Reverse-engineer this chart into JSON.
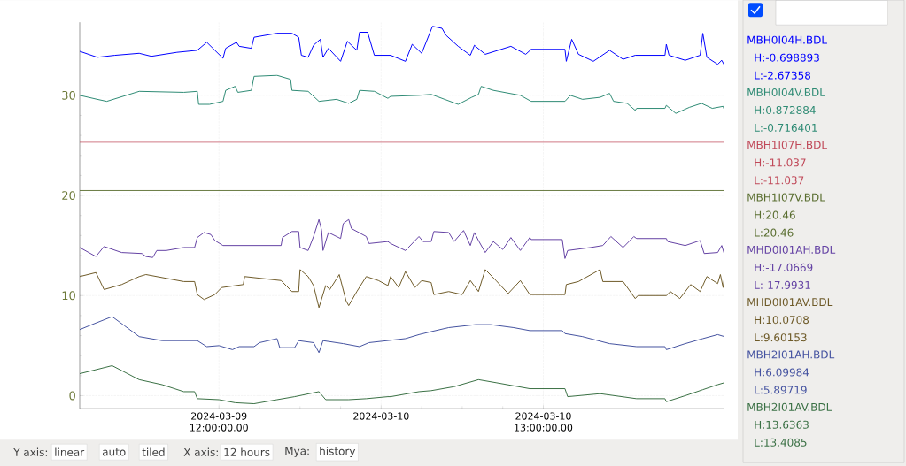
{
  "chart_data": {
    "type": "line",
    "xlim": [
      "2024-03-09T01:42",
      "2024-03-11T01:24"
    ],
    "ylim": [
      -1.3,
      37.3
    ],
    "xticks": [
      {
        "value": "2024-03-09T12:00",
        "label": "2024-03-09 12:00:00.00"
      },
      {
        "value": "2024-03-10T00:00",
        "label": "2024-03-10"
      },
      {
        "value": "2024-03-10T12:00",
        "label": "2024-03-10 13:00:00.00"
      }
    ],
    "yticks": [
      0,
      10,
      20,
      30
    ],
    "grid": true,
    "legend": "right",
    "series": [
      {
        "name": "MBH0I04H.BDL",
        "color": "#0000ff",
        "x": [
          "2024-03-09T01:42",
          "2024-03-09T03:00",
          "2024-03-09T04:18",
          "2024-03-09T06:06",
          "2024-03-09T07:00",
          "2024-03-09T08:54",
          "2024-03-09T10:24",
          "2024-03-09T11:06",
          "2024-03-09T11:42",
          "2024-03-09T12:18",
          "2024-03-09T12:30",
          "2024-03-09T13:18",
          "2024-03-09T13:30",
          "2024-03-09T14:24",
          "2024-03-09T14:36",
          "2024-03-09T16:18",
          "2024-03-09T17:24",
          "2024-03-09T17:54",
          "2024-03-09T18:06",
          "2024-03-09T18:36",
          "2024-03-09T19:00",
          "2024-03-09T19:30",
          "2024-03-09T19:42",
          "2024-03-09T20:06",
          "2024-03-09T21:00",
          "2024-03-09T21:30",
          "2024-03-09T22:12",
          "2024-03-09T22:24",
          "2024-03-09T23:00",
          "2024-03-09T23:30",
          "2024-03-10T00:30",
          "2024-03-10T00:42",
          "2024-03-10T01:48",
          "2024-03-10T02:18",
          "2024-03-10T03:00",
          "2024-03-10T03:48",
          "2024-03-10T04:30",
          "2024-03-10T04:48",
          "2024-03-10T05:42",
          "2024-03-10T06:36",
          "2024-03-10T06:54",
          "2024-03-10T07:42",
          "2024-03-10T09:36",
          "2024-03-10T10:42",
          "2024-03-10T11:06",
          "2024-03-10T13:36",
          "2024-03-10T13:42",
          "2024-03-10T14:06",
          "2024-03-10T14:36",
          "2024-03-10T15:42",
          "2024-03-10T16:54",
          "2024-03-10T17:54",
          "2024-03-10T18:48",
          "2024-03-10T21:00",
          "2024-03-10T21:06",
          "2024-03-10T21:18",
          "2024-03-10T22:30",
          "2024-03-10T23:36",
          "2024-03-10T23:48",
          "2024-03-11T00:06",
          "2024-03-11T00:54",
          "2024-03-11T01:12",
          "2024-03-11T01:24"
        ],
        "values": [
          34.4,
          33.8,
          34.0,
          34.2,
          33.9,
          34.3,
          34.5,
          35.3,
          34.5,
          33.7,
          34.7,
          35.3,
          34.9,
          34.7,
          35.8,
          36.2,
          36.2,
          35.8,
          34.0,
          33.8,
          35.0,
          35.6,
          33.8,
          34.7,
          33.4,
          35.4,
          34.5,
          36.3,
          36.3,
          34.0,
          34.0,
          34.0,
          33.4,
          35.1,
          34.2,
          36.9,
          36.7,
          36.0,
          34.9,
          34.0,
          35.0,
          34.1,
          34.9,
          34.1,
          34.6,
          34.6,
          33.4,
          35.6,
          34.1,
          33.4,
          34.5,
          33.6,
          34.0,
          34.0,
          35.1,
          34.0,
          33.5,
          34.0,
          36.2,
          33.8,
          33.1,
          33.5,
          33.0
        ]
      },
      {
        "name": "MBH0I04V.BDL",
        "color": "#2e8b74",
        "x": [
          "2024-03-09T01:42",
          "2024-03-09T03:00",
          "2024-03-09T03:42",
          "2024-03-09T06:06",
          "2024-03-09T09:24",
          "2024-03-09T10:24",
          "2024-03-09T10:30",
          "2024-03-09T11:18",
          "2024-03-09T12:18",
          "2024-03-09T12:30",
          "2024-03-09T13:12",
          "2024-03-09T13:24",
          "2024-03-09T14:24",
          "2024-03-09T14:36",
          "2024-03-09T16:18",
          "2024-03-09T17:18",
          "2024-03-09T17:24",
          "2024-03-09T18:36",
          "2024-03-09T19:24",
          "2024-03-09T20:42",
          "2024-03-09T21:36",
          "2024-03-09T22:12",
          "2024-03-09T22:24",
          "2024-03-09T23:30",
          "2024-03-10T00:30",
          "2024-03-10T00:42",
          "2024-03-10T02:48",
          "2024-03-10T03:42",
          "2024-03-10T05:42",
          "2024-03-10T06:42",
          "2024-03-10T07:12",
          "2024-03-10T07:24",
          "2024-03-10T08:18",
          "2024-03-10T10:18",
          "2024-03-10T11:06",
          "2024-03-10T13:36",
          "2024-03-10T14:00",
          "2024-03-10T14:54",
          "2024-03-10T16:12",
          "2024-03-10T16:54",
          "2024-03-10T17:12",
          "2024-03-10T18:12",
          "2024-03-10T18:48",
          "2024-03-10T18:54",
          "2024-03-10T21:00",
          "2024-03-10T21:06",
          "2024-03-10T21:48",
          "2024-03-10T22:48",
          "2024-03-10T23:42",
          "2024-03-11T00:30",
          "2024-03-11T01:18",
          "2024-03-11T01:24"
        ],
        "values": [
          30.0,
          29.6,
          29.4,
          30.4,
          30.3,
          30.4,
          29.1,
          29.1,
          29.4,
          30.5,
          30.9,
          30.3,
          30.5,
          31.9,
          32.0,
          31.6,
          30.5,
          30.4,
          29.4,
          29.6,
          29.2,
          29.6,
          30.5,
          30.4,
          29.7,
          29.9,
          30.0,
          30.1,
          29.1,
          29.8,
          30.1,
          30.9,
          30.5,
          30.0,
          29.4,
          29.4,
          30.0,
          29.6,
          29.8,
          30.2,
          29.4,
          29.2,
          28.5,
          28.7,
          28.7,
          29.0,
          28.2,
          28.8,
          29.2,
          28.7,
          28.9,
          28.5
        ]
      },
      {
        "name": "MBH1I07H.BDL",
        "color": "#c04858",
        "x": [
          "2024-03-09T01:42",
          "2024-03-11T01:24"
        ],
        "values": [
          25.3,
          25.3
        ]
      },
      {
        "name": "MBH1I07V.BDL",
        "color": "#5a6e30",
        "x": [
          "2024-03-09T01:42",
          "2024-03-11T01:24"
        ],
        "values": [
          20.5,
          20.5
        ]
      },
      {
        "name": "MHD0I01AH.BDL",
        "color": "#6442a4",
        "x": [
          "2024-03-09T01:42",
          "2024-03-09T02:54",
          "2024-03-09T03:30",
          "2024-03-09T04:48",
          "2024-03-09T06:18",
          "2024-03-09T06:36",
          "2024-03-09T07:06",
          "2024-03-09T07:24",
          "2024-03-09T08:06",
          "2024-03-09T09:24",
          "2024-03-09T10:12",
          "2024-03-09T10:24",
          "2024-03-09T10:54",
          "2024-03-09T11:24",
          "2024-03-09T11:42",
          "2024-03-09T12:18",
          "2024-03-09T16:36",
          "2024-03-09T16:42",
          "2024-03-09T17:24",
          "2024-03-09T17:54",
          "2024-03-09T18:00",
          "2024-03-09T18:36",
          "2024-03-09T19:00",
          "2024-03-09T19:24",
          "2024-03-09T19:36",
          "2024-03-09T19:42",
          "2024-03-09T20:06",
          "2024-03-09T21:00",
          "2024-03-09T21:12",
          "2024-03-09T21:36",
          "2024-03-09T21:48",
          "2024-03-09T22:54",
          "2024-03-09T23:06",
          "2024-03-10T00:30",
          "2024-03-10T00:42",
          "2024-03-10T01:48",
          "2024-03-10T02:48",
          "2024-03-10T03:06",
          "2024-03-10T03:42",
          "2024-03-10T03:54",
          "2024-03-10T05:00",
          "2024-03-10T05:24",
          "2024-03-10T06:06",
          "2024-03-10T06:36",
          "2024-03-10T06:54",
          "2024-03-10T07:12",
          "2024-03-10T07:42",
          "2024-03-10T08:18",
          "2024-03-10T09:00",
          "2024-03-10T09:36",
          "2024-03-10T10:18",
          "2024-03-10T11:00",
          "2024-03-10T11:06",
          "2024-03-10T13:24",
          "2024-03-10T13:36",
          "2024-03-10T13:48",
          "2024-03-10T15:30",
          "2024-03-10T16:24",
          "2024-03-10T17:00",
          "2024-03-10T17:54",
          "2024-03-10T18:42",
          "2024-03-10T18:54",
          "2024-03-10T21:06",
          "2024-03-10T21:12",
          "2024-03-10T22:30",
          "2024-03-10T23:36",
          "2024-03-10T23:54",
          "2024-03-11T00:54",
          "2024-03-11T01:12",
          "2024-03-11T01:24"
        ],
        "values": [
          14.8,
          13.9,
          14.9,
          14.3,
          14.2,
          13.9,
          13.8,
          14.5,
          14.5,
          14.8,
          14.8,
          15.8,
          16.3,
          16.1,
          15.5,
          15.0,
          15.0,
          15.8,
          16.4,
          16.4,
          14.8,
          14.5,
          15.9,
          17.6,
          16.5,
          14.5,
          16.3,
          15.7,
          17.2,
          17.6,
          16.7,
          15.9,
          15.2,
          15.4,
          15.2,
          14.5,
          15.9,
          15.4,
          15.4,
          16.4,
          16.3,
          15.4,
          16.5,
          15.0,
          16.3,
          15.5,
          14.3,
          15.4,
          14.6,
          15.8,
          14.5,
          15.8,
          15.6,
          15.6,
          13.7,
          14.5,
          14.8,
          15.0,
          15.9,
          14.8,
          15.9,
          15.7,
          15.7,
          15.4,
          15.0,
          15.5,
          14.2,
          14.3,
          15.0,
          14.1
        ]
      },
      {
        "name": "MHD0I01AV.BDL",
        "color": "#6e5a28",
        "x": [
          "2024-03-09T01:42",
          "2024-03-09T02:54",
          "2024-03-09T03:30",
          "2024-03-09T04:48",
          "2024-03-09T06:06",
          "2024-03-09T06:36",
          "2024-03-09T07:24",
          "2024-03-09T09:24",
          "2024-03-09T10:12",
          "2024-03-09T10:24",
          "2024-03-09T10:54",
          "2024-03-09T11:42",
          "2024-03-09T12:12",
          "2024-03-09T13:48",
          "2024-03-09T13:54",
          "2024-03-09T16:36",
          "2024-03-09T17:24",
          "2024-03-09T17:54",
          "2024-03-09T18:00",
          "2024-03-09T18:36",
          "2024-03-09T19:00",
          "2024-03-09T19:24",
          "2024-03-09T19:54",
          "2024-03-09T20:12",
          "2024-03-09T20:54",
          "2024-03-09T21:24",
          "2024-03-09T21:36",
          "2024-03-09T22:12",
          "2024-03-09T22:54",
          "2024-03-09T23:48",
          "2024-03-10T00:30",
          "2024-03-10T00:42",
          "2024-03-10T01:18",
          "2024-03-10T01:48",
          "2024-03-10T02:30",
          "2024-03-10T03:00",
          "2024-03-10T03:42",
          "2024-03-10T03:54",
          "2024-03-10T05:00",
          "2024-03-10T06:00",
          "2024-03-10T06:36",
          "2024-03-10T07:12",
          "2024-03-10T07:42",
          "2024-03-10T08:30",
          "2024-03-10T09:24",
          "2024-03-10T10:18",
          "2024-03-10T11:00",
          "2024-03-10T11:06",
          "2024-03-10T13:36",
          "2024-03-10T13:42",
          "2024-03-10T14:36",
          "2024-03-10T16:12",
          "2024-03-10T16:24",
          "2024-03-10T17:54",
          "2024-03-10T18:48",
          "2024-03-10T19:00",
          "2024-03-10T21:06",
          "2024-03-10T21:24",
          "2024-03-10T22:06",
          "2024-03-10T22:54",
          "2024-03-10T23:36",
          "2024-03-11T00:06",
          "2024-03-11T00:54",
          "2024-03-11T01:06",
          "2024-03-11T01:18",
          "2024-03-11T01:24"
        ],
        "values": [
          11.9,
          12.3,
          10.6,
          11.1,
          11.9,
          12.1,
          11.9,
          11.4,
          11.4,
          10.1,
          9.6,
          10.1,
          10.8,
          11.1,
          11.9,
          11.5,
          10.4,
          10.4,
          12.6,
          11.9,
          11.0,
          8.8,
          11.0,
          10.6,
          12.1,
          9.5,
          9.0,
          10.4,
          11.9,
          11.5,
          11.0,
          11.9,
          10.8,
          12.4,
          10.8,
          11.5,
          11.3,
          10.1,
          10.4,
          10.1,
          11.5,
          10.4,
          12.6,
          11.5,
          10.2,
          11.5,
          10.1,
          10.1,
          10.1,
          11.1,
          11.4,
          12.6,
          11.4,
          11.4,
          9.7,
          10.0,
          10.0,
          10.4,
          9.7,
          11.1,
          10.4,
          11.9,
          11.2,
          12.1,
          10.8,
          11.9
        ]
      },
      {
        "name": "MBH2I01AH.BDL",
        "color": "#4452a0",
        "x": [
          "2024-03-09T01:42",
          "2024-03-09T02:36",
          "2024-03-09T04:06",
          "2024-03-09T05:00",
          "2024-03-09T06:06",
          "2024-03-09T07:48",
          "2024-03-09T09:24",
          "2024-03-09T10:24",
          "2024-03-09T11:06",
          "2024-03-09T12:00",
          "2024-03-09T13:00",
          "2024-03-09T13:30",
          "2024-03-09T14:36",
          "2024-03-09T15:00",
          "2024-03-09T16:18",
          "2024-03-09T16:30",
          "2024-03-09T17:36",
          "2024-03-09T17:54",
          "2024-03-09T19:00",
          "2024-03-09T19:24",
          "2024-03-09T19:42",
          "2024-03-09T21:12",
          "2024-03-09T22:24",
          "2024-03-09T23:06",
          "2024-03-10T01:48",
          "2024-03-10T02:48",
          "2024-03-10T03:42",
          "2024-03-10T05:00",
          "2024-03-10T07:00",
          "2024-03-10T08:06",
          "2024-03-10T09:48",
          "2024-03-10T11:00",
          "2024-03-10T13:24",
          "2024-03-10T13:36",
          "2024-03-10T14:54",
          "2024-03-10T16:54",
          "2024-03-10T18:54",
          "2024-03-10T21:00",
          "2024-03-10T21:06",
          "2024-03-10T22:30",
          "2024-03-10T23:48",
          "2024-03-11T00:54",
          "2024-03-11T01:24"
        ],
        "values": [
          6.6,
          7.1,
          7.9,
          7.0,
          5.9,
          5.5,
          5.5,
          5.5,
          4.9,
          5.0,
          4.6,
          4.9,
          4.9,
          5.3,
          5.7,
          4.8,
          4.8,
          5.5,
          5.3,
          4.3,
          5.5,
          5.2,
          4.9,
          5.3,
          5.7,
          6.1,
          6.4,
          6.8,
          7.1,
          7.1,
          6.8,
          6.5,
          6.5,
          6.2,
          5.9,
          5.2,
          4.9,
          4.9,
          4.6,
          5.2,
          5.7,
          6.1,
          5.9
        ]
      },
      {
        "name": "MBH2I01AV.BDL",
        "color": "#3a7044",
        "x": [
          "2024-03-09T01:42",
          "2024-03-09T04:06",
          "2024-03-09T06:06",
          "2024-03-09T07:48",
          "2024-03-09T09:24",
          "2024-03-09T10:12",
          "2024-03-09T10:24",
          "2024-03-09T12:00",
          "2024-03-09T13:12",
          "2024-03-09T14:36",
          "2024-03-09T16:18",
          "2024-03-09T17:36",
          "2024-03-09T19:24",
          "2024-03-09T19:54",
          "2024-03-09T21:36",
          "2024-03-09T22:54",
          "2024-03-10T00:30",
          "2024-03-10T00:42",
          "2024-03-10T02:48",
          "2024-03-10T03:42",
          "2024-03-10T05:24",
          "2024-03-10T07:12",
          "2024-03-10T08:30",
          "2024-03-10T11:00",
          "2024-03-10T13:36",
          "2024-03-10T13:48",
          "2024-03-10T16:12",
          "2024-03-10T18:54",
          "2024-03-10T21:00",
          "2024-03-10T21:06",
          "2024-03-10T22:30",
          "2024-03-10T23:48",
          "2024-03-11T00:54",
          "2024-03-11T01:24"
        ],
        "values": [
          2.2,
          3.0,
          1.6,
          1.1,
          0.4,
          0.4,
          -0.3,
          -0.4,
          -0.7,
          -0.8,
          -0.4,
          -0.1,
          0.4,
          -0.4,
          -0.4,
          -0.3,
          -0.1,
          -0.1,
          0.4,
          0.5,
          0.9,
          1.6,
          1.3,
          0.7,
          0.7,
          -0.1,
          0.2,
          -0.3,
          -0.3,
          -0.6,
          0.0,
          0.6,
          1.1,
          1.3
        ]
      }
    ],
    "annotations": [
      "H:-0.698893",
      "L:-2.67358",
      "H:0.872884",
      "L:-0.716401",
      "H:-11.037",
      "L:-11.037",
      "H:20.46",
      "L:20.46",
      "H:-17.0669",
      "L:-17.9931",
      "H:10.0708",
      "L:9.60153",
      "H:6.09984",
      "L:5.89719",
      "H:13.6363",
      "L:13.4085",
      "Y axis:",
      "linear",
      "auto",
      "tiled",
      "X axis:",
      "12 hours",
      "Mya:",
      "history"
    ]
  }
}
